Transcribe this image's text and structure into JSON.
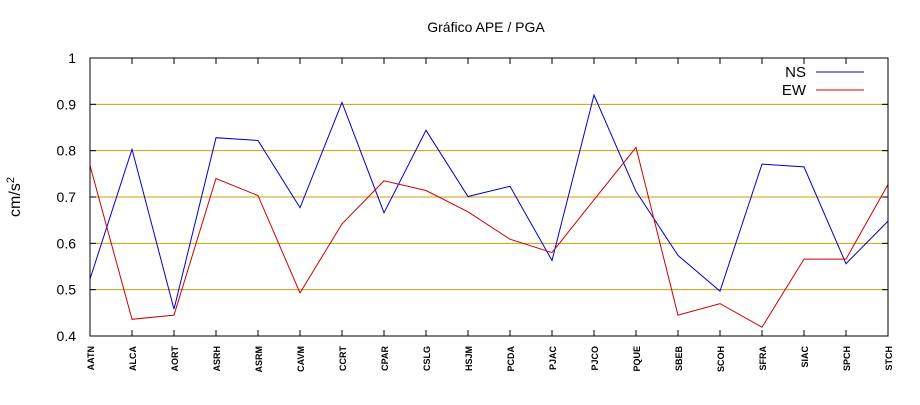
{
  "chart_data": {
    "type": "line",
    "title": "Gráfico  APE / PGA",
    "xlabel": "",
    "ylabel": "cm/s",
    "ylabel_exponent": "2",
    "categories": [
      "AATN",
      "ALCA",
      "AORT",
      "ASRH",
      "ASRM",
      "CAVM",
      "CCRT",
      "CPAR",
      "CSLG",
      "HSJM",
      "PCDA",
      "PJAC",
      "PJCO",
      "PQUE",
      "SBEB",
      "SCOH",
      "SFRA",
      "SIAC",
      "SPCH",
      "STCH"
    ],
    "ylim": [
      0.4,
      1
    ],
    "yticks": [
      {
        "value": 0.4,
        "label": "0.4"
      },
      {
        "value": 0.5,
        "label": "0.5"
      },
      {
        "value": 0.6,
        "label": "0.6"
      },
      {
        "value": 0.7,
        "label": "0.7"
      },
      {
        "value": 0.8,
        "label": "0.8"
      },
      {
        "value": 0.9,
        "label": "0.9"
      },
      {
        "value": 1.0,
        "label": "1"
      }
    ],
    "grid": true,
    "grid_color": "#c8a000",
    "legend_position": "top-right",
    "series": [
      {
        "name": "NS",
        "color": "#0000cc",
        "values": [
          0.523,
          0.803,
          0.458,
          0.828,
          0.822,
          0.677,
          0.904,
          0.666,
          0.844,
          0.701,
          0.723,
          0.563,
          0.92,
          0.712,
          0.574,
          0.497,
          0.771,
          0.765,
          0.556,
          0.648
        ]
      },
      {
        "name": "EW",
        "color": "#cc0000",
        "values": [
          0.768,
          0.436,
          0.445,
          0.74,
          0.703,
          0.493,
          0.642,
          0.735,
          0.714,
          0.668,
          0.609,
          0.58,
          0.694,
          0.807,
          0.445,
          0.47,
          0.419,
          0.566,
          0.566,
          0.727
        ]
      }
    ]
  }
}
